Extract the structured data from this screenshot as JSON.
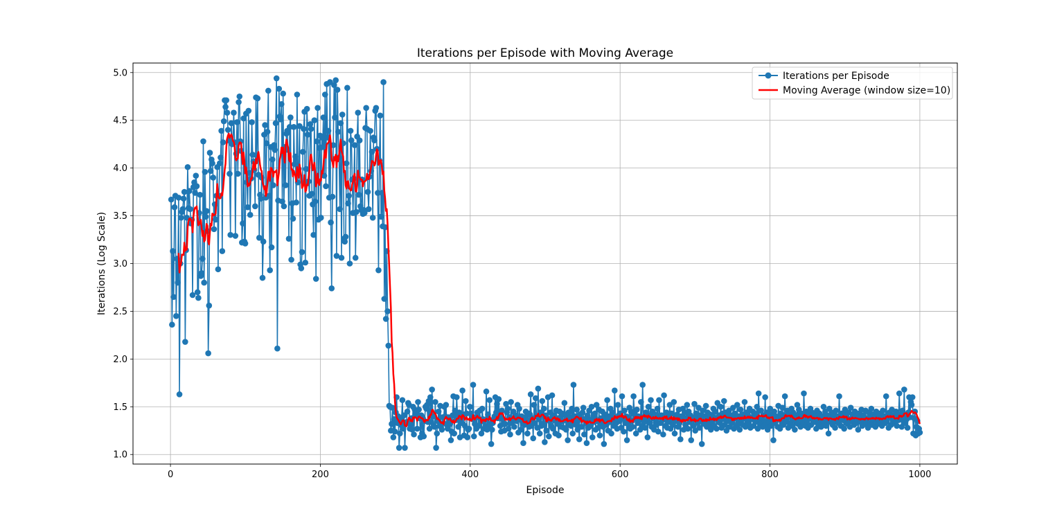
{
  "chart_data": {
    "type": "line",
    "title": "Iterations per Episode with Moving Average",
    "xlabel": "Episode",
    "ylabel": "Iterations (Log Scale)",
    "xlim": [
      -50,
      1050
    ],
    "ylim": [
      0.9,
      5.1
    ],
    "x_ticks": [
      0,
      200,
      400,
      600,
      800,
      1000
    ],
    "y_ticks": [
      1.0,
      1.5,
      2.0,
      2.5,
      3.0,
      3.5,
      4.0,
      4.5,
      5.0
    ],
    "x_tick_labels": [
      "0",
      "200",
      "400",
      "600",
      "800",
      "1000"
    ],
    "y_tick_labels": [
      "1.0",
      "1.5",
      "2.0",
      "2.5",
      "3.0",
      "3.5",
      "4.0",
      "4.5",
      "5.0"
    ],
    "grid": true,
    "legend_position": "top-right",
    "series": [
      {
        "name": "Iterations per Episode",
        "color": "#1f77b4",
        "marker": "circle",
        "x_start": 1,
        "values": [
          3.67,
          2.36,
          3.13,
          2.65,
          3.59,
          3.71,
          2.45,
          3.05,
          2.8,
          3.69,
          1.63,
          3.0,
          3.48,
          3.54,
          3.57,
          3.68,
          3.75,
          2.18,
          3.14,
          3.48,
          4.01,
          3.58,
          3.76,
          3.57,
          3.42,
          3.46,
          2.67,
          3.8,
          3.85,
          3.74,
          3.92,
          3.81,
          2.7,
          2.64,
          3.53,
          3.72,
          2.87,
          2.9,
          3.05,
          4.28,
          2.8,
          3.96,
          3.49,
          3.55,
          3.34,
          2.06,
          2.56,
          4.16,
          3.97,
          4.09,
          4.05,
          3.9,
          3.36,
          3.62,
          3.46,
          3.71,
          4.01,
          2.94,
          3.71,
          4.05,
          4.11,
          4.39,
          3.13,
          4.27,
          4.49,
          4.71,
          4.64,
          4.71,
          4.58,
          4.4,
          4.29,
          3.94,
          3.3,
          4.47,
          4.25,
          4.26,
          4.58,
          4.27,
          3.29,
          4.15,
          4.48,
          3.94,
          4.69,
          4.75,
          4.28,
          4.18,
          3.22,
          3.42,
          4.52,
          3.23,
          3.21,
          4.57,
          3.85,
          3.59,
          4.6,
          3.95,
          3.51,
          3.89,
          4.48,
          4.14,
          4.07,
          3.98,
          3.6,
          4.74,
          4.13,
          4.73,
          3.93,
          3.27,
          3.72,
          3.68,
          3.9,
          2.85,
          3.23,
          4.35,
          4.45,
          3.69,
          4.26,
          4.38,
          4.81,
          3.71,
          2.93,
          4.22,
          3.17,
          4.09,
          3.82,
          4.24,
          4.19,
          4.47,
          4.94,
          2.11,
          3.66,
          4.83,
          4.54,
          4.51,
          4.67,
          3.65,
          4.78,
          3.6,
          4.22,
          3.82,
          4.36,
          4.39,
          4.19,
          3.26,
          4.43,
          4.53,
          3.04,
          3.63,
          3.47,
          4.43,
          4.04,
          4.12,
          3.64,
          4.77,
          3.85,
          3.99,
          4.44,
          2.99,
          2.95,
          3.12,
          4.17,
          4.41,
          4.59,
          3.01,
          3.99,
          4.62,
          4.35,
          3.86,
          3.71,
          4.46,
          4.41,
          3.73,
          3.62,
          3.3,
          4.5,
          3.65,
          2.84,
          4.28,
          4.63,
          3.46,
          4.21,
          4.34,
          3.48,
          4.32,
          4.22,
          4.53,
          3.92,
          4.77,
          3.81,
          4.88,
          4.32,
          4.39,
          3.69,
          4.9,
          3.43,
          2.74,
          3.7,
          4.24,
          4.87,
          4.53,
          4.92,
          3.08,
          4.82,
          4.38,
          4.11,
          3.57,
          4.47,
          3.06,
          4.56,
          4.26,
          3.26,
          3.23,
          3.28,
          4.05,
          4.84,
          3.63,
          3.71,
          3.0,
          4.39,
          4.29,
          3.88,
          3.53,
          3.89,
          4.24,
          3.06,
          3.54,
          4.33,
          4.58,
          3.72,
          4.29,
          3.6,
          3.56,
          3.88,
          3.52,
          3.56,
          3.53,
          4.42,
          4.63,
          4.41,
          3.75,
          3.57,
          3.91,
          4.39,
          3.97,
          4.17,
          3.48,
          4.32,
          4.29,
          4.6,
          4.63,
          4.2,
          3.74,
          2.93,
          4.08,
          4.55,
          3.49,
          3.74,
          3.39,
          4.9,
          2.63,
          3.38,
          2.42,
          3.13,
          2.5,
          2.14,
          1.51,
          1.5,
          1.25,
          1.32,
          1.49,
          1.18,
          1.37,
          1.24,
          1.44,
          1.6,
          1.33,
          1.4,
          1.07,
          1.22,
          1.31,
          1.37,
          1.57,
          1.27,
          1.41,
          1.07,
          1.32,
          1.34,
          1.45,
          1.54,
          1.52,
          1.27,
          1.31,
          1.38,
          1.26,
          1.5,
          1.21,
          1.47,
          1.42,
          1.44,
          1.27,
          1.55,
          1.47,
          1.38,
          1.18,
          1.41,
          1.22,
          1.38,
          1.19,
          1.35,
          1.5,
          1.48,
          1.52,
          1.34,
          1.56,
          1.27,
          1.6,
          1.34,
          1.68,
          1.4,
          1.3,
          1.29,
          1.55,
          1.07,
          1.22,
          1.35,
          1.45,
          1.3,
          1.51,
          1.29,
          1.26,
          1.39,
          1.33,
          1.5,
          1.4,
          1.52,
          1.31,
          1.27,
          1.39,
          1.36,
          1.32,
          1.15,
          1.24,
          1.41,
          1.61,
          1.22,
          1.46,
          1.36,
          1.6,
          1.42,
          1.29,
          1.44,
          1.18,
          1.38,
          1.33,
          1.67,
          1.42,
          1.2,
          1.3,
          1.56,
          1.43,
          1.18,
          1.26,
          1.27,
          1.5,
          1.43,
          1.41,
          1.37,
          1.73,
          1.19,
          1.32,
          1.39,
          1.27,
          1.44,
          1.39,
          1.3,
          1.46,
          1.34,
          1.22,
          1.48,
          1.37,
          1.27,
          1.36,
          1.3,
          1.66,
          1.26,
          1.42,
          1.28,
          1.57,
          1.32,
          1.11,
          1.26,
          1.33,
          1.37,
          1.4,
          1.6,
          1.44,
          1.53,
          1.38,
          1.58,
          1.4,
          1.3,
          1.24,
          1.46,
          1.37,
          1.32,
          1.25,
          1.32,
          1.53,
          1.44,
          1.48,
          1.27,
          1.39,
          1.21,
          1.55,
          1.33,
          1.36,
          1.45,
          1.29,
          1.41,
          1.39,
          1.35,
          1.52,
          1.23,
          1.48,
          1.37,
          1.26,
          1.4,
          1.34,
          1.12,
          1.31,
          1.39,
          1.45,
          1.36,
          1.22,
          1.43,
          1.29,
          1.42,
          1.63,
          1.3,
          1.38,
          1.17,
          1.52,
          1.33,
          1.59,
          1.4,
          1.28,
          1.69,
          1.37,
          1.22,
          1.44,
          1.3,
          1.56,
          1.32,
          1.48,
          1.13,
          1.41,
          1.25,
          1.38,
          1.6,
          1.19,
          1.35,
          1.44,
          1.3,
          1.62,
          1.27,
          1.41,
          1.36,
          1.22,
          1.46,
          1.38,
          1.32,
          1.2,
          1.45,
          1.39,
          1.29,
          1.43,
          1.35,
          1.28,
          1.54,
          1.41,
          1.26,
          1.37,
          1.15,
          1.44,
          1.33,
          1.39,
          1.3,
          1.48,
          1.22,
          1.73,
          1.34,
          1.4,
          1.31,
          1.47,
          1.26,
          1.36,
          1.16,
          1.42,
          1.38,
          1.29,
          1.44,
          1.49,
          1.21,
          1.37,
          1.33,
          1.12,
          1.41,
          1.28,
          1.46,
          1.36,
          1.3,
          1.5,
          1.18,
          1.39,
          1.34,
          1.43,
          1.26,
          1.52,
          1.35,
          1.28,
          1.47,
          1.2,
          1.38,
          1.33,
          1.45,
          1.29,
          1.11,
          1.42,
          1.37,
          1.31,
          1.57,
          1.25,
          1.4,
          1.34,
          1.48,
          1.22,
          1.44,
          1.36,
          1.3,
          1.67,
          1.39,
          1.33,
          1.27,
          1.52,
          1.41,
          1.35,
          1.43,
          1.28,
          1.61,
          1.38,
          1.24,
          1.46,
          1.33,
          1.4,
          1.15,
          1.37,
          1.31,
          1.49,
          1.27,
          1.45,
          1.35,
          1.29,
          1.61,
          1.42,
          1.38,
          1.22,
          1.47,
          1.33,
          1.4,
          1.36,
          1.26,
          1.55,
          1.3,
          1.73,
          1.39,
          1.34,
          1.28,
          1.44,
          1.37,
          1.18,
          1.5,
          1.41,
          1.33,
          1.57,
          1.29,
          1.45,
          1.38,
          1.26,
          1.42,
          1.35,
          1.31,
          1.48,
          1.24,
          1.57,
          1.39,
          1.33,
          1.41,
          1.36,
          1.21,
          1.62,
          1.37,
          1.3,
          1.44,
          1.28,
          1.4,
          1.34,
          1.52,
          1.27,
          1.43,
          1.36,
          1.31,
          1.55,
          1.22,
          1.39,
          1.35,
          1.42,
          1.29,
          1.47,
          1.33,
          1.16,
          1.4,
          1.37,
          1.48,
          1.26,
          1.44,
          1.31,
          1.38,
          1.52,
          1.27,
          1.45,
          1.34,
          1.41,
          1.15,
          1.39,
          1.36,
          1.3,
          1.53,
          1.25,
          1.43,
          1.38,
          1.33,
          1.49,
          1.28,
          1.41,
          1.35,
          1.11,
          1.46,
          1.4,
          1.32,
          1.37,
          1.51,
          1.29,
          1.44,
          1.36,
          1.31,
          1.42,
          1.26,
          1.39,
          1.34,
          1.48,
          1.3,
          1.45,
          1.38,
          1.27,
          1.54,
          1.35,
          1.41,
          1.33,
          1.5,
          1.28,
          1.43,
          1.37,
          1.56,
          1.31,
          1.44,
          1.25,
          1.39,
          1.35,
          1.46,
          1.29,
          1.41,
          1.36,
          1.33,
          1.49,
          1.27,
          1.43,
          1.38,
          1.3,
          1.52,
          1.34,
          1.4,
          1.26,
          1.47,
          1.36,
          1.42,
          1.31,
          1.38,
          1.55,
          1.29,
          1.44,
          1.35,
          1.41,
          1.33,
          1.48,
          1.28,
          1.39,
          1.37,
          1.45,
          1.3,
          1.43,
          1.34,
          1.4,
          1.5,
          1.27,
          1.64,
          1.36,
          1.32,
          1.46,
          1.38,
          1.29,
          1.41,
          1.35,
          1.6,
          1.31,
          1.44,
          1.26,
          1.39,
          1.34,
          1.48,
          1.3,
          1.42,
          1.37,
          1.15,
          1.45,
          1.33,
          1.4,
          1.36,
          1.29,
          1.51,
          1.38,
          1.27,
          1.43,
          1.35,
          1.49,
          1.31,
          1.41,
          1.61,
          1.37,
          1.34,
          1.46,
          1.28,
          1.42,
          1.39,
          1.33,
          1.48,
          1.3,
          1.44,
          1.36,
          1.26,
          1.41,
          1.35,
          1.52,
          1.32,
          1.47,
          1.38,
          1.29,
          1.43,
          1.37,
          1.33,
          1.64,
          1.4,
          1.3,
          1.45,
          1.35,
          1.28,
          1.42,
          1.38,
          1.48,
          1.31,
          1.44,
          1.36,
          1.39,
          1.34,
          1.41,
          1.27,
          1.46,
          1.37,
          1.32,
          1.43,
          1.38,
          1.29,
          1.4,
          1.35,
          1.5,
          1.33,
          1.45,
          1.3,
          1.41,
          1.36,
          1.22,
          1.48,
          1.39,
          1.34,
          1.44,
          1.31,
          1.42,
          1.37,
          1.28,
          1.46,
          1.35,
          1.4,
          1.33,
          1.61,
          1.38,
          1.3,
          1.43,
          1.36,
          1.41,
          1.27,
          1.47,
          1.34,
          1.39,
          1.32,
          1.44,
          1.37,
          1.29,
          1.49,
          1.35,
          1.42,
          1.38,
          1.31,
          1.45,
          1.33,
          1.4,
          1.36,
          1.26,
          1.43,
          1.39,
          1.34,
          1.47,
          1.3,
          1.41,
          1.37,
          1.32,
          1.46,
          1.35,
          1.38,
          1.28,
          1.44,
          1.4,
          1.33,
          1.48,
          1.31,
          1.42,
          1.36,
          1.39,
          1.29,
          1.45,
          1.34,
          1.41,
          1.37,
          1.32,
          1.43,
          1.38,
          1.3,
          1.46,
          1.35,
          1.4,
          1.33,
          1.61,
          1.36,
          1.42,
          1.28,
          1.44,
          1.39,
          1.31,
          1.47,
          1.34,
          1.41,
          1.37,
          1.33,
          1.45,
          1.3,
          1.4,
          1.36,
          1.64,
          1.38,
          1.42,
          1.29,
          1.46,
          1.35,
          1.68,
          1.33,
          1.41,
          1.37,
          1.28,
          1.44,
          1.6,
          1.39,
          1.55,
          1.52,
          1.6,
          1.22,
          1.38,
          1.45,
          1.2,
          1.29,
          1.35,
          1.22,
          1.27,
          1.23
        ],
        "note_episodes": "episodes 1 to 1000"
      },
      {
        "name": "Moving Average (window size=10)",
        "color": "#ff0000",
        "window": 10
      }
    ],
    "legend": [
      "Iterations per Episode",
      "Moving Average (window size=10)"
    ]
  }
}
